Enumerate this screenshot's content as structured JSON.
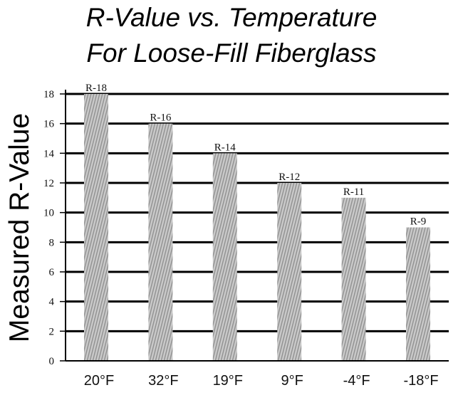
{
  "chart_data": {
    "type": "bar",
    "title": "R-Value vs. Temperature",
    "subtitle": "For Loose-Fill Fiberglass",
    "xlabel": "",
    "ylabel": "Measured R-Value",
    "ylim": [
      0,
      18
    ],
    "yticks": [
      0,
      2,
      4,
      6,
      8,
      10,
      12,
      14,
      16,
      18
    ],
    "grid": true,
    "categories": [
      "20°F",
      "32°F",
      "19°F",
      "9°F",
      "-4°F",
      "-18°F"
    ],
    "values": [
      18,
      16,
      14,
      12,
      11,
      9
    ],
    "data_labels": [
      "R-18",
      "R-16",
      "R-14",
      "R-12",
      "R-11",
      "R-9"
    ]
  },
  "colors": {
    "bar": "#c4c4c4",
    "hatch": "#8f8f8f",
    "gridline": "#000000",
    "axis": "#000000"
  }
}
